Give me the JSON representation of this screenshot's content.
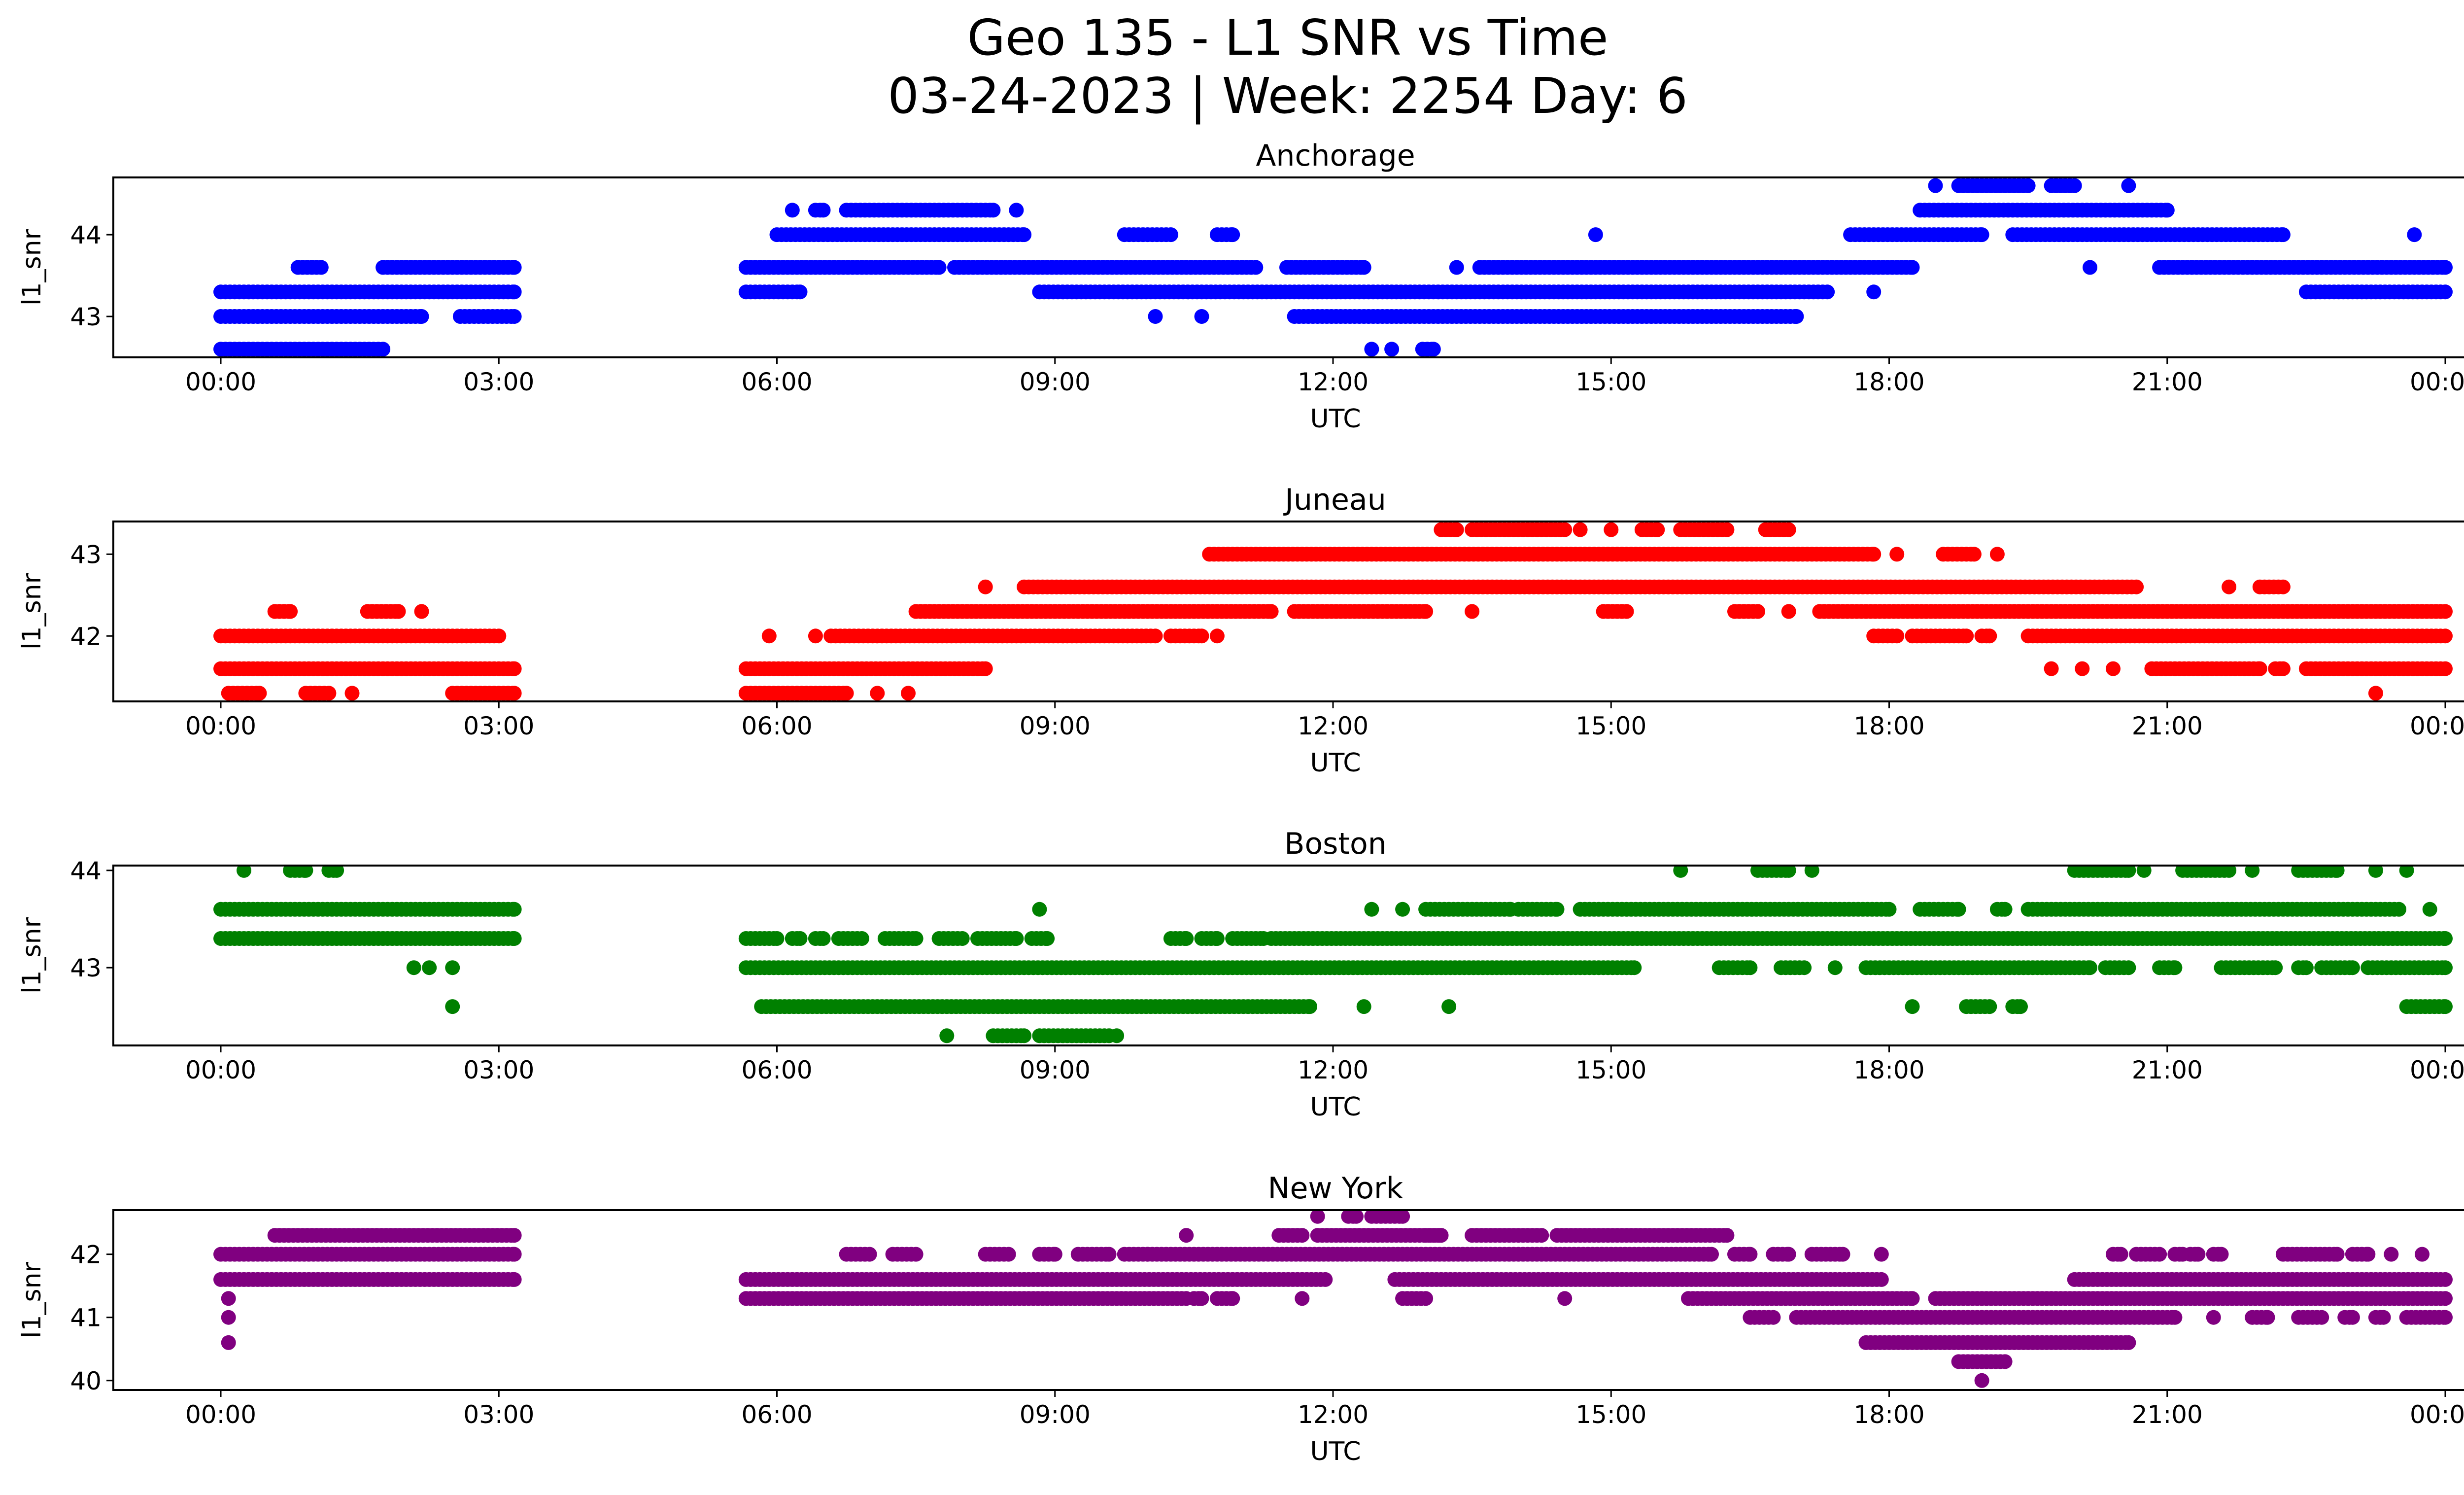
{
  "figure": {
    "title_line1": "Geo 135 - L1 SNR vs Time",
    "title_line2": "03-24-2023 | Week: 2254 Day: 6"
  },
  "chart_data": [
    {
      "type": "scatter",
      "title": "Anchorage",
      "xlabel": "UTC",
      "ylabel": "l1_snr",
      "color": "#0000ff",
      "xlim": [
        "00:00",
        "24:00"
      ],
      "xticks": [
        "00:00",
        "03:00",
        "06:00",
        "09:00",
        "12:00",
        "15:00",
        "18:00",
        "21:00",
        "00:00"
      ],
      "ylim": [
        42.5,
        44.7
      ],
      "yticks": [
        43,
        44
      ],
      "series": [
        {
          "y": 42.6,
          "ranges": [
            [
              "00:00",
              "01:45"
            ],
            [
              "12:25",
              "12:25"
            ],
            [
              "12:38",
              "12:38"
            ],
            [
              "12:58",
              "13:05"
            ]
          ]
        },
        {
          "y": 43.0,
          "ranges": [
            [
              "00:00",
              "02:10"
            ],
            [
              "02:35",
              "03:10"
            ],
            [
              "10:05",
              "10:05"
            ],
            [
              "10:35",
              "10:35"
            ],
            [
              "11:35",
              "17:00"
            ]
          ]
        },
        {
          "y": 43.3,
          "ranges": [
            [
              "00:00",
              "03:10"
            ],
            [
              "05:40",
              "06:15"
            ],
            [
              "08:50",
              "17:20"
            ],
            [
              "17:50",
              "17:50"
            ],
            [
              "22:30",
              "24:00"
            ]
          ]
        },
        {
          "y": 43.6,
          "ranges": [
            [
              "00:50",
              "01:05"
            ],
            [
              "01:45",
              "03:10"
            ],
            [
              "05:40",
              "07:45"
            ],
            [
              "07:55",
              "11:10"
            ],
            [
              "11:30",
              "12:20"
            ],
            [
              "13:20",
              "13:20"
            ],
            [
              "13:35",
              "18:15"
            ],
            [
              "20:10",
              "20:10"
            ],
            [
              "20:55",
              "24:00"
            ]
          ]
        },
        {
          "y": 44.0,
          "ranges": [
            [
              "06:00",
              "08:40"
            ],
            [
              "09:45",
              "10:15"
            ],
            [
              "10:45",
              "10:55"
            ],
            [
              "14:50",
              "14:50"
            ],
            [
              "17:35",
              "19:00"
            ],
            [
              "19:20",
              "22:15"
            ],
            [
              "23:40",
              "23:40"
            ]
          ]
        },
        {
          "y": 44.3,
          "ranges": [
            [
              "06:10",
              "06:10"
            ],
            [
              "06:25",
              "06:30"
            ],
            [
              "06:45",
              "08:20"
            ],
            [
              "08:35",
              "08:35"
            ],
            [
              "18:20",
              "21:00"
            ]
          ]
        },
        {
          "y": 44.6,
          "ranges": [
            [
              "18:30",
              "18:30"
            ],
            [
              "18:45",
              "19:30"
            ],
            [
              "19:45",
              "20:00"
            ],
            [
              "20:35",
              "20:35"
            ]
          ]
        }
      ]
    },
    {
      "type": "scatter",
      "title": "Juneau",
      "xlabel": "UTC",
      "ylabel": "l1_snr",
      "color": "#ff0000",
      "xlim": [
        "00:00",
        "24:00"
      ],
      "xticks": [
        "00:00",
        "03:00",
        "06:00",
        "09:00",
        "12:00",
        "15:00",
        "18:00",
        "21:00",
        "00:00"
      ],
      "ylim": [
        41.2,
        43.4
      ],
      "yticks": [
        42,
        43
      ],
      "series": [
        {
          "y": 41.3,
          "ranges": [
            [
              "00:05",
              "00:25"
            ],
            [
              "00:55",
              "01:10"
            ],
            [
              "01:25",
              "01:25"
            ],
            [
              "02:30",
              "03:10"
            ],
            [
              "05:40",
              "06:45"
            ],
            [
              "07:05",
              "07:05"
            ],
            [
              "07:25",
              "07:25"
            ],
            [
              "23:15",
              "23:15"
            ]
          ]
        },
        {
          "y": 41.6,
          "ranges": [
            [
              "00:00",
              "03:10"
            ],
            [
              "05:40",
              "08:15"
            ],
            [
              "19:45",
              "19:45"
            ],
            [
              "20:05",
              "20:05"
            ],
            [
              "20:25",
              "20:25"
            ],
            [
              "20:50",
              "22:00"
            ],
            [
              "22:10",
              "22:15"
            ],
            [
              "22:30",
              "24:00"
            ]
          ]
        },
        {
          "y": 42.0,
          "ranges": [
            [
              "00:00",
              "03:00"
            ],
            [
              "05:55",
              "05:55"
            ],
            [
              "06:25",
              "06:25"
            ],
            [
              "06:35",
              "10:05"
            ],
            [
              "10:15",
              "10:35"
            ],
            [
              "10:45",
              "10:45"
            ],
            [
              "17:50",
              "18:05"
            ],
            [
              "18:15",
              "18:50"
            ],
            [
              "19:00",
              "19:05"
            ],
            [
              "19:30",
              "24:00"
            ]
          ]
        },
        {
          "y": 42.3,
          "ranges": [
            [
              "00:35",
              "00:45"
            ],
            [
              "01:35",
              "01:55"
            ],
            [
              "02:10",
              "02:10"
            ],
            [
              "07:30",
              "11:20"
            ],
            [
              "11:35",
              "13:00"
            ],
            [
              "13:30",
              "13:30"
            ],
            [
              "14:55",
              "15:10"
            ],
            [
              "16:20",
              "16:35"
            ],
            [
              "16:55",
              "16:55"
            ],
            [
              "17:15",
              "24:00"
            ]
          ]
        },
        {
          "y": 42.6,
          "ranges": [
            [
              "08:15",
              "08:15"
            ],
            [
              "08:40",
              "20:40"
            ],
            [
              "21:40",
              "21:40"
            ],
            [
              "22:00",
              "22:15"
            ]
          ]
        },
        {
          "y": 43.0,
          "ranges": [
            [
              "10:40",
              "17:50"
            ],
            [
              "18:05",
              "18:05"
            ],
            [
              "18:35",
              "18:55"
            ],
            [
              "19:10",
              "19:10"
            ]
          ]
        },
        {
          "y": 43.3,
          "ranges": [
            [
              "13:10",
              "13:20"
            ],
            [
              "13:30",
              "14:30"
            ],
            [
              "14:40",
              "14:40"
            ],
            [
              "15:00",
              "15:00"
            ],
            [
              "15:20",
              "15:30"
            ],
            [
              "15:45",
              "16:15"
            ],
            [
              "16:40",
              "16:55"
            ]
          ]
        }
      ]
    },
    {
      "type": "scatter",
      "title": "Boston",
      "xlabel": "UTC",
      "ylabel": "l1_snr",
      "color": "#008000",
      "xlim": [
        "00:00",
        "24:00"
      ],
      "xticks": [
        "00:00",
        "03:00",
        "06:00",
        "09:00",
        "12:00",
        "15:00",
        "18:00",
        "21:00",
        "00:00"
      ],
      "ylim": [
        42.2,
        44.05
      ],
      "yticks": [
        43,
        44
      ],
      "series": [
        {
          "y": 42.3,
          "ranges": [
            [
              "07:50",
              "07:50"
            ],
            [
              "08:20",
              "08:40"
            ],
            [
              "08:50",
              "09:35"
            ],
            [
              "09:40",
              "09:40"
            ]
          ]
        },
        {
          "y": 42.6,
          "ranges": [
            [
              "02:30",
              "02:30"
            ],
            [
              "05:50",
              "11:45"
            ],
            [
              "12:20",
              "12:20"
            ],
            [
              "13:15",
              "13:15"
            ],
            [
              "18:15",
              "18:15"
            ],
            [
              "18:50",
              "19:05"
            ],
            [
              "19:20",
              "19:25"
            ],
            [
              "23:35",
              "24:00"
            ]
          ]
        },
        {
          "y": 43.0,
          "ranges": [
            [
              "02:05",
              "02:05"
            ],
            [
              "02:15",
              "02:15"
            ],
            [
              "02:30",
              "02:30"
            ],
            [
              "05:40",
              "15:15"
            ],
            [
              "16:10",
              "16:30"
            ],
            [
              "16:50",
              "17:05"
            ],
            [
              "17:25",
              "17:25"
            ],
            [
              "17:45",
              "20:10"
            ],
            [
              "20:20",
              "20:35"
            ],
            [
              "20:55",
              "21:05"
            ],
            [
              "21:35",
              "22:10"
            ],
            [
              "22:25",
              "22:30"
            ],
            [
              "22:40",
              "23:00"
            ],
            [
              "23:10",
              "24:00"
            ]
          ]
        },
        {
          "y": 43.3,
          "ranges": [
            [
              "00:00",
              "03:10"
            ],
            [
              "05:40",
              "06:00"
            ],
            [
              "06:10",
              "06:15"
            ],
            [
              "06:25",
              "06:30"
            ],
            [
              "06:40",
              "06:55"
            ],
            [
              "07:10",
              "07:30"
            ],
            [
              "07:45",
              "08:00"
            ],
            [
              "08:10",
              "08:35"
            ],
            [
              "08:45",
              "08:55"
            ],
            [
              "10:15",
              "10:25"
            ],
            [
              "10:35",
              "10:45"
            ],
            [
              "10:55",
              "11:15"
            ],
            [
              "11:20",
              "24:00"
            ]
          ]
        },
        {
          "y": 43.6,
          "ranges": [
            [
              "00:00",
              "03:10"
            ],
            [
              "08:50",
              "08:50"
            ],
            [
              "12:25",
              "12:25"
            ],
            [
              "12:45",
              "12:45"
            ],
            [
              "13:00",
              "13:55"
            ],
            [
              "14:00",
              "14:25"
            ],
            [
              "14:40",
              "18:00"
            ],
            [
              "18:20",
              "18:45"
            ],
            [
              "19:10",
              "19:15"
            ],
            [
              "19:30",
              "23:30"
            ],
            [
              "23:50",
              "23:50"
            ]
          ]
        },
        {
          "y": 44.0,
          "ranges": [
            [
              "00:15",
              "00:15"
            ],
            [
              "00:45",
              "00:55"
            ],
            [
              "01:10",
              "01:15"
            ],
            [
              "15:45",
              "15:45"
            ],
            [
              "16:35",
              "16:55"
            ],
            [
              "17:10",
              "17:10"
            ],
            [
              "20:00",
              "20:35"
            ],
            [
              "20:45",
              "20:45"
            ],
            [
              "21:10",
              "21:40"
            ],
            [
              "21:55",
              "21:55"
            ],
            [
              "22:25",
              "22:50"
            ],
            [
              "23:15",
              "23:15"
            ],
            [
              "23:35",
              "23:35"
            ]
          ]
        }
      ]
    },
    {
      "type": "scatter",
      "title": "New York",
      "xlabel": "UTC",
      "ylabel": "l1_snr",
      "color": "#800080",
      "xlim": [
        "00:00",
        "24:00"
      ],
      "xticks": [
        "00:00",
        "03:00",
        "06:00",
        "09:00",
        "12:00",
        "15:00",
        "18:00",
        "21:00",
        "00:00"
      ],
      "ylim": [
        39.85,
        42.7
      ],
      "yticks": [
        40,
        41,
        42
      ],
      "series": [
        {
          "y": 40.0,
          "ranges": [
            [
              "19:00",
              "19:00"
            ]
          ]
        },
        {
          "y": 40.3,
          "ranges": [
            [
              "18:45",
              "19:15"
            ]
          ]
        },
        {
          "y": 40.6,
          "ranges": [
            [
              "00:05",
              "00:05"
            ],
            [
              "17:45",
              "20:35"
            ]
          ]
        },
        {
          "y": 41.0,
          "ranges": [
            [
              "00:05",
              "00:05"
            ],
            [
              "16:30",
              "16:45"
            ],
            [
              "17:00",
              "21:05"
            ],
            [
              "21:30",
              "21:30"
            ],
            [
              "21:55",
              "22:05"
            ],
            [
              "22:25",
              "22:40"
            ],
            [
              "22:55",
              "23:00"
            ],
            [
              "23:15",
              "23:20"
            ],
            [
              "23:35",
              "24:00"
            ]
          ]
        },
        {
          "y": 41.3,
          "ranges": [
            [
              "00:05",
              "00:05"
            ],
            [
              "05:40",
              "10:25"
            ],
            [
              "10:30",
              "10:35"
            ],
            [
              "10:45",
              "10:55"
            ],
            [
              "11:40",
              "11:40"
            ],
            [
              "12:45",
              "13:00"
            ],
            [
              "14:30",
              "14:30"
            ],
            [
              "15:50",
              "18:15"
            ],
            [
              "18:30",
              "24:00"
            ]
          ]
        },
        {
          "y": 41.6,
          "ranges": [
            [
              "00:00",
              "03:10"
            ],
            [
              "05:40",
              "11:55"
            ],
            [
              "12:40",
              "17:55"
            ],
            [
              "20:00",
              "24:00"
            ]
          ]
        },
        {
          "y": 42.0,
          "ranges": [
            [
              "00:00",
              "03:10"
            ],
            [
              "06:45",
              "07:00"
            ],
            [
              "07:15",
              "07:30"
            ],
            [
              "08:15",
              "08:30"
            ],
            [
              "08:50",
              "09:00"
            ],
            [
              "09:15",
              "09:35"
            ],
            [
              "09:45",
              "10:00"
            ],
            [
              "10:00",
              "16:05"
            ],
            [
              "16:20",
              "16:30"
            ],
            [
              "16:45",
              "16:55"
            ],
            [
              "17:10",
              "17:30"
            ],
            [
              "17:55",
              "17:55"
            ],
            [
              "20:25",
              "20:30"
            ],
            [
              "20:40",
              "20:55"
            ],
            [
              "21:05",
              "21:10"
            ],
            [
              "21:15",
              "21:20"
            ],
            [
              "21:30",
              "21:35"
            ],
            [
              "22:15",
              "22:50"
            ],
            [
              "23:00",
              "23:10"
            ],
            [
              "23:25",
              "23:25"
            ],
            [
              "23:45",
              "23:45"
            ]
          ]
        },
        {
          "y": 42.3,
          "ranges": [
            [
              "00:35",
              "03:10"
            ],
            [
              "10:25",
              "10:25"
            ],
            [
              "11:25",
              "11:40"
            ],
            [
              "11:50",
              "13:10"
            ],
            [
              "13:00",
              "13:10"
            ],
            [
              "13:30",
              "14:15"
            ],
            [
              "14:25",
              "16:15"
            ]
          ]
        },
        {
          "y": 42.6,
          "ranges": [
            [
              "11:50",
              "11:50"
            ],
            [
              "12:10",
              "12:15"
            ],
            [
              "12:25",
              "12:45"
            ]
          ]
        }
      ]
    }
  ]
}
